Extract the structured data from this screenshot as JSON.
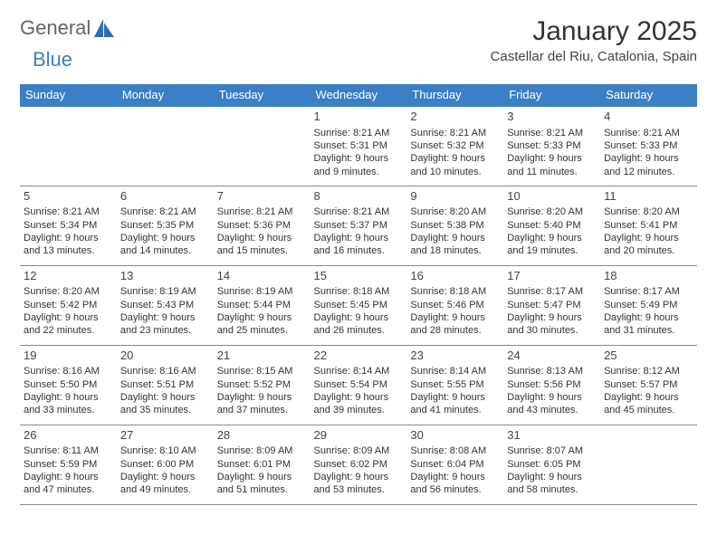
{
  "brand": {
    "part1": "General",
    "part2": "Blue"
  },
  "title": {
    "month": "January 2025",
    "location": "Castellar del Riu, Catalonia, Spain"
  },
  "colors": {
    "header_bg": "#3b7fc4",
    "header_fg": "#ffffff",
    "border": "#888888",
    "text": "#333333",
    "brand_gray": "#666666",
    "brand_blue": "#3b7fc4",
    "background": "#ffffff"
  },
  "calendar": {
    "type": "table",
    "columns": [
      "Sunday",
      "Monday",
      "Tuesday",
      "Wednesday",
      "Thursday",
      "Friday",
      "Saturday"
    ],
    "col_count": 7,
    "font_size_header": 13,
    "font_size_cell": 11,
    "weeks": [
      [
        null,
        null,
        null,
        {
          "n": "1",
          "sr": "8:21 AM",
          "ss": "5:31 PM",
          "dl": "9 hours and 9 minutes."
        },
        {
          "n": "2",
          "sr": "8:21 AM",
          "ss": "5:32 PM",
          "dl": "9 hours and 10 minutes."
        },
        {
          "n": "3",
          "sr": "8:21 AM",
          "ss": "5:33 PM",
          "dl": "9 hours and 11 minutes."
        },
        {
          "n": "4",
          "sr": "8:21 AM",
          "ss": "5:33 PM",
          "dl": "9 hours and 12 minutes."
        }
      ],
      [
        {
          "n": "5",
          "sr": "8:21 AM",
          "ss": "5:34 PM",
          "dl": "9 hours and 13 minutes."
        },
        {
          "n": "6",
          "sr": "8:21 AM",
          "ss": "5:35 PM",
          "dl": "9 hours and 14 minutes."
        },
        {
          "n": "7",
          "sr": "8:21 AM",
          "ss": "5:36 PM",
          "dl": "9 hours and 15 minutes."
        },
        {
          "n": "8",
          "sr": "8:21 AM",
          "ss": "5:37 PM",
          "dl": "9 hours and 16 minutes."
        },
        {
          "n": "9",
          "sr": "8:20 AM",
          "ss": "5:38 PM",
          "dl": "9 hours and 18 minutes."
        },
        {
          "n": "10",
          "sr": "8:20 AM",
          "ss": "5:40 PM",
          "dl": "9 hours and 19 minutes."
        },
        {
          "n": "11",
          "sr": "8:20 AM",
          "ss": "5:41 PM",
          "dl": "9 hours and 20 minutes."
        }
      ],
      [
        {
          "n": "12",
          "sr": "8:20 AM",
          "ss": "5:42 PM",
          "dl": "9 hours and 22 minutes."
        },
        {
          "n": "13",
          "sr": "8:19 AM",
          "ss": "5:43 PM",
          "dl": "9 hours and 23 minutes."
        },
        {
          "n": "14",
          "sr": "8:19 AM",
          "ss": "5:44 PM",
          "dl": "9 hours and 25 minutes."
        },
        {
          "n": "15",
          "sr": "8:18 AM",
          "ss": "5:45 PM",
          "dl": "9 hours and 26 minutes."
        },
        {
          "n": "16",
          "sr": "8:18 AM",
          "ss": "5:46 PM",
          "dl": "9 hours and 28 minutes."
        },
        {
          "n": "17",
          "sr": "8:17 AM",
          "ss": "5:47 PM",
          "dl": "9 hours and 30 minutes."
        },
        {
          "n": "18",
          "sr": "8:17 AM",
          "ss": "5:49 PM",
          "dl": "9 hours and 31 minutes."
        }
      ],
      [
        {
          "n": "19",
          "sr": "8:16 AM",
          "ss": "5:50 PM",
          "dl": "9 hours and 33 minutes."
        },
        {
          "n": "20",
          "sr": "8:16 AM",
          "ss": "5:51 PM",
          "dl": "9 hours and 35 minutes."
        },
        {
          "n": "21",
          "sr": "8:15 AM",
          "ss": "5:52 PM",
          "dl": "9 hours and 37 minutes."
        },
        {
          "n": "22",
          "sr": "8:14 AM",
          "ss": "5:54 PM",
          "dl": "9 hours and 39 minutes."
        },
        {
          "n": "23",
          "sr": "8:14 AM",
          "ss": "5:55 PM",
          "dl": "9 hours and 41 minutes."
        },
        {
          "n": "24",
          "sr": "8:13 AM",
          "ss": "5:56 PM",
          "dl": "9 hours and 43 minutes."
        },
        {
          "n": "25",
          "sr": "8:12 AM",
          "ss": "5:57 PM",
          "dl": "9 hours and 45 minutes."
        }
      ],
      [
        {
          "n": "26",
          "sr": "8:11 AM",
          "ss": "5:59 PM",
          "dl": "9 hours and 47 minutes."
        },
        {
          "n": "27",
          "sr": "8:10 AM",
          "ss": "6:00 PM",
          "dl": "9 hours and 49 minutes."
        },
        {
          "n": "28",
          "sr": "8:09 AM",
          "ss": "6:01 PM",
          "dl": "9 hours and 51 minutes."
        },
        {
          "n": "29",
          "sr": "8:09 AM",
          "ss": "6:02 PM",
          "dl": "9 hours and 53 minutes."
        },
        {
          "n": "30",
          "sr": "8:08 AM",
          "ss": "6:04 PM",
          "dl": "9 hours and 56 minutes."
        },
        {
          "n": "31",
          "sr": "8:07 AM",
          "ss": "6:05 PM",
          "dl": "9 hours and 58 minutes."
        },
        null
      ]
    ],
    "labels": {
      "sunrise": "Sunrise:",
      "sunset": "Sunset:",
      "daylight": "Daylight:"
    }
  }
}
